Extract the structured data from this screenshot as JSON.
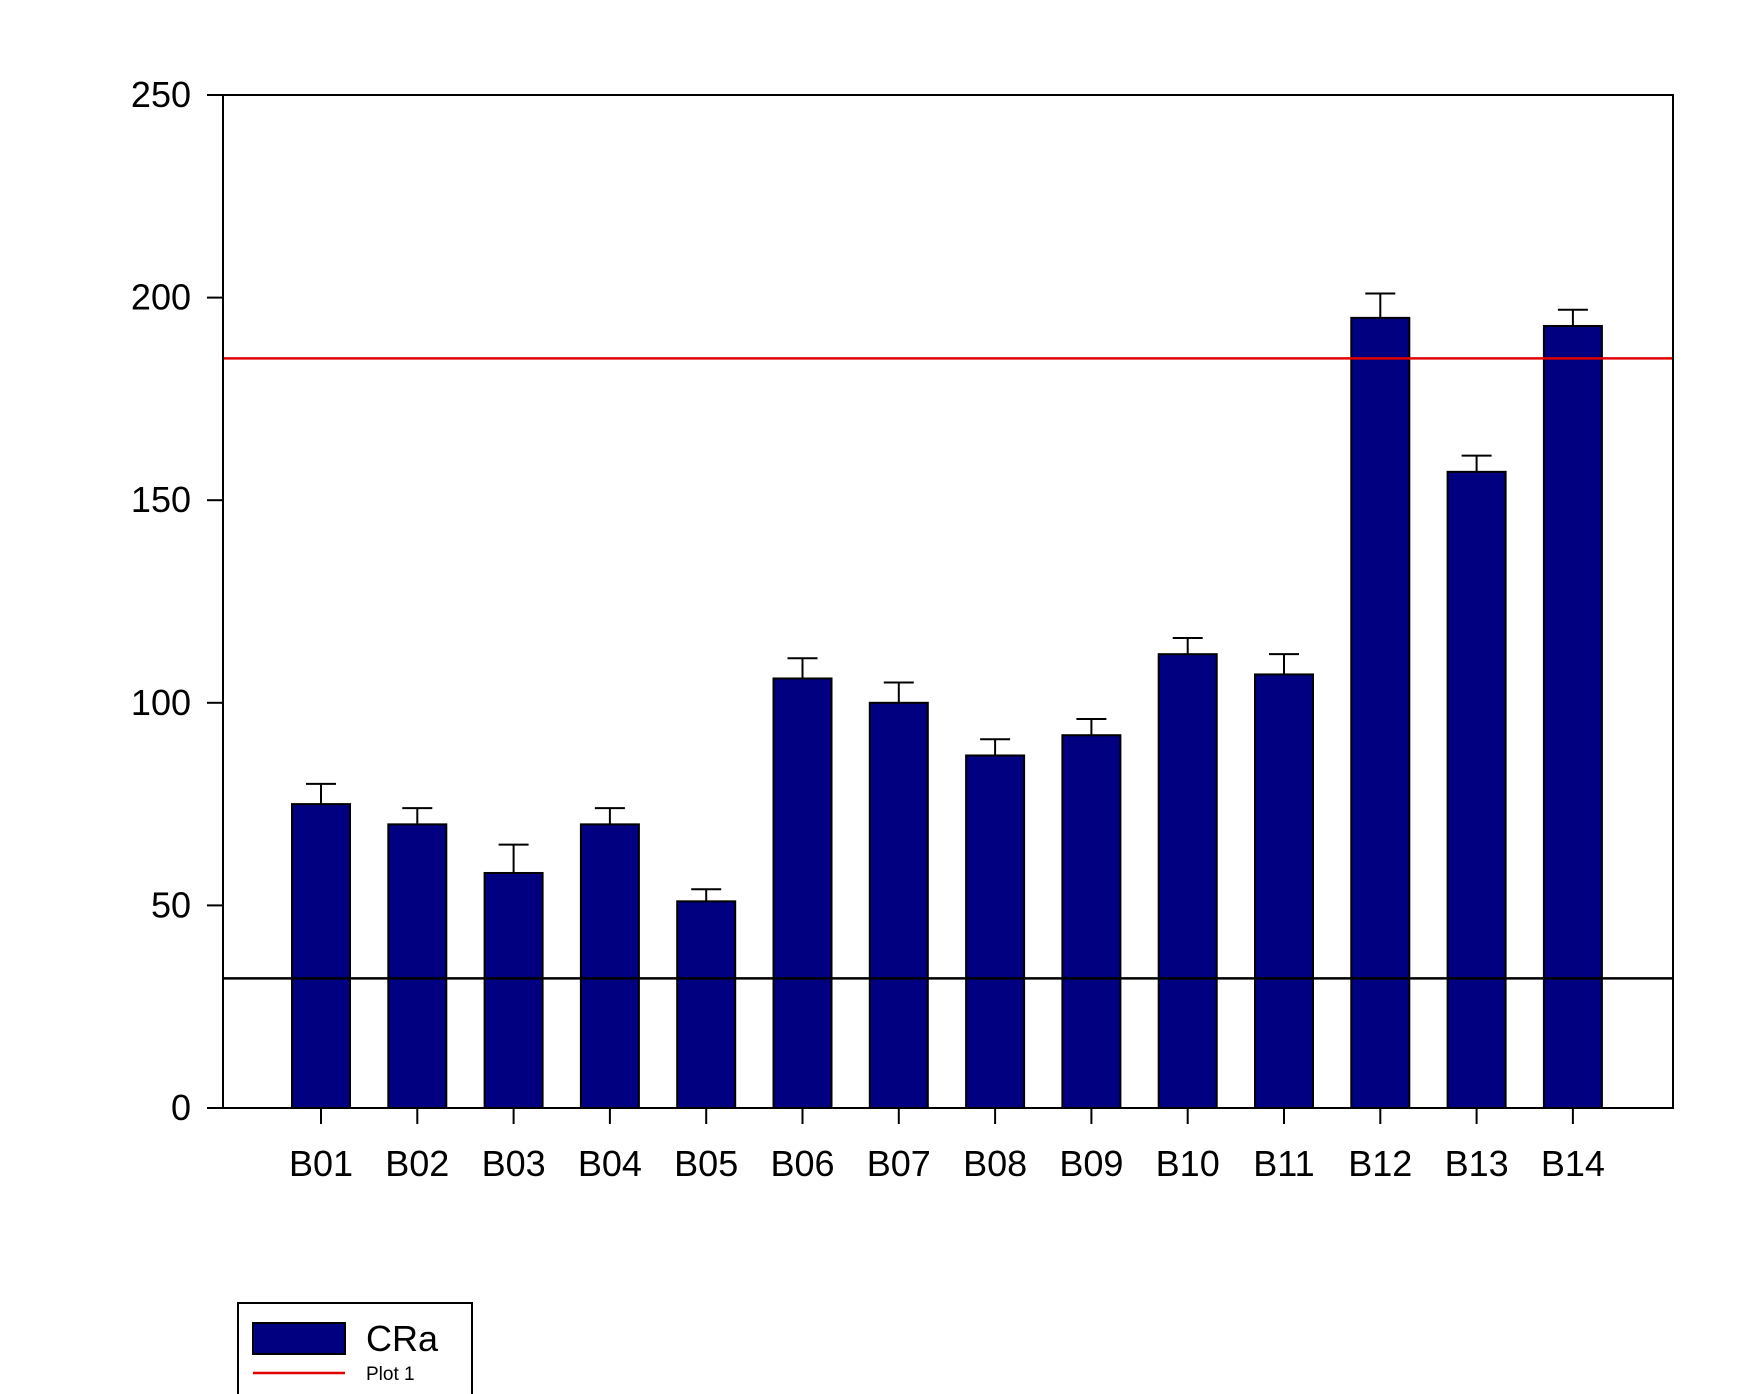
{
  "chart_data": {
    "type": "bar",
    "categories": [
      "B01",
      "B02",
      "B03",
      "B04",
      "B05",
      "B06",
      "B07",
      "B08",
      "B09",
      "B10",
      "B11",
      "B12",
      "B13",
      "B14"
    ],
    "series": [
      {
        "name": "CRa",
        "values": [
          75,
          70,
          58,
          70,
          51,
          106,
          100,
          87,
          92,
          112,
          107,
          195,
          157,
          193
        ],
        "error_plus": [
          5,
          4,
          7,
          4,
          3,
          5,
          5,
          4,
          4,
          4,
          5,
          6,
          4,
          4
        ],
        "color": "#000080"
      }
    ],
    "reference_lines": [
      {
        "name": "Plot 1",
        "y": 185,
        "color": "#e00000"
      },
      {
        "name": "",
        "y": 32,
        "color": "#000000"
      }
    ],
    "ylim": [
      0,
      250
    ],
    "yticks": [
      0,
      50,
      100,
      150,
      200,
      250
    ],
    "title": "",
    "xlabel": "",
    "ylabel": "",
    "grid": false,
    "legend": {
      "position": "bottom-left",
      "entries": [
        {
          "label": "CRa",
          "kind": "bar",
          "color": "#000080"
        },
        {
          "label": "Plot 1",
          "kind": "line",
          "color": "#e00000"
        }
      ]
    }
  }
}
